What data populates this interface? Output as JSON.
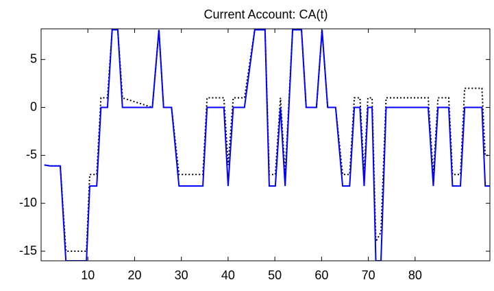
{
  "chart_data": {
    "type": "line",
    "title": "Current Account: CA(t)",
    "x": [
      0.7,
      1.9,
      4.1,
      5.3,
      9.7,
      10.4,
      11.9,
      12.8,
      14.2,
      15.2,
      16.4,
      17.4,
      23.8,
      25.2,
      26.2,
      27.9,
      29.5,
      34.6,
      35.5,
      39.1,
      40.0,
      41.1,
      43.5,
      45.7,
      47.9,
      48.8,
      50.1,
      51.2,
      52.2,
      53.8,
      55.7,
      56.7,
      58.9,
      60.1,
      61.3,
      63.0,
      64.5,
      66.0,
      67.0,
      68.2,
      69.1,
      69.9,
      70.8,
      71.6,
      72.7,
      73.8,
      82.8,
      83.9,
      84.9,
      87.2,
      88.0,
      89.7,
      90.6,
      94.3,
      95.0,
      96.0
    ],
    "series": [
      {
        "color": "#000000",
        "dash": "dotted",
        "values": [
          -6.0,
          -6.1,
          -6.1,
          -15,
          -15,
          -7,
          -7,
          1,
          1,
          8.1,
          8.1,
          1,
          0,
          8.1,
          0,
          0,
          -7,
          -7,
          1,
          1,
          -6,
          1,
          1,
          8.1,
          8.1,
          -7,
          -7,
          1,
          -7,
          8.1,
          8.1,
          0,
          0,
          8.1,
          0,
          0,
          -7,
          -7,
          1,
          1,
          -7,
          1,
          1,
          -14,
          -13,
          1,
          1,
          -7,
          1,
          1,
          -7,
          -7,
          2,
          2,
          -5,
          -5
        ]
      },
      {
        "color": "#0000ff",
        "dash": "solid",
        "values": [
          -6.0,
          -6.1,
          -6.1,
          -16,
          -16,
          -8.2,
          -8.2,
          0,
          0,
          8.1,
          8.1,
          0,
          0,
          8.1,
          0,
          0,
          -8.2,
          -8.2,
          0,
          0,
          -8.2,
          0,
          0,
          8.1,
          8.1,
          -8.2,
          -8.2,
          0,
          -8.2,
          8.1,
          8.1,
          0,
          0,
          8.1,
          0,
          0,
          -8.2,
          -8.2,
          0,
          0,
          -8.2,
          0,
          0,
          -16,
          -16,
          0,
          0,
          -8.2,
          0,
          0,
          -8.2,
          -8.2,
          0,
          0,
          -8.2,
          -8.2
        ]
      }
    ],
    "xlim": [
      0,
      96
    ],
    "ylim": [
      -16,
      8.2
    ],
    "xticks": [
      10,
      20,
      30,
      40,
      50,
      60,
      70,
      80
    ],
    "yticks": [
      -15,
      -10,
      -5,
      0,
      5
    ],
    "grid": false
  }
}
